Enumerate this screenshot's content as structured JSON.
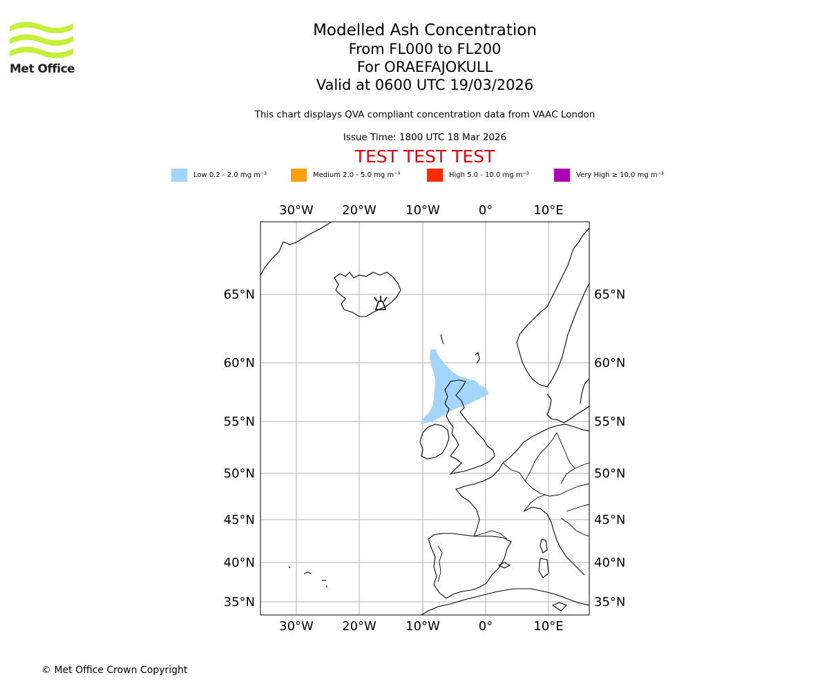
{
  "header": {
    "logo_text": "Met Office",
    "title": "Modelled Ash Concentration",
    "levels": "From FL000 to FL200",
    "volcano": "For ORAEFAJOKULL",
    "valid": "Valid at 0600 UTC 19/03/2026",
    "description": "This chart displays QVA compliant concentration data from VAAC London",
    "issue_time": "Issue Time: 1800 UTC 18 Mar 2026",
    "test_banner": "TEST TEST TEST"
  },
  "legend": [
    {
      "label": "Low 0.2 - 2.0 mg m⁻³",
      "color": "#a3d5fc"
    },
    {
      "label": "Medium 2.0 - 5.0 mg m⁻³",
      "color": "#ff9f0e"
    },
    {
      "label": "High 5.0 - 10.0 mg m⁻³",
      "color": "#ff2a00"
    },
    {
      "label": "Very High ≥ 10.0 mg m⁻³",
      "color": "#ac00b7"
    }
  ],
  "map": {
    "lon_labels": [
      "30°W",
      "20°W",
      "10°W",
      "0°",
      "10°E"
    ],
    "lat_labels": [
      "65°N",
      "60°N",
      "55°N",
      "50°N",
      "45°N",
      "40°N",
      "35°N"
    ],
    "ash_class": "Low",
    "volcano_icon": "volcano-icon"
  },
  "footer": {
    "copyright": "© Met Office Crown Copyright"
  }
}
